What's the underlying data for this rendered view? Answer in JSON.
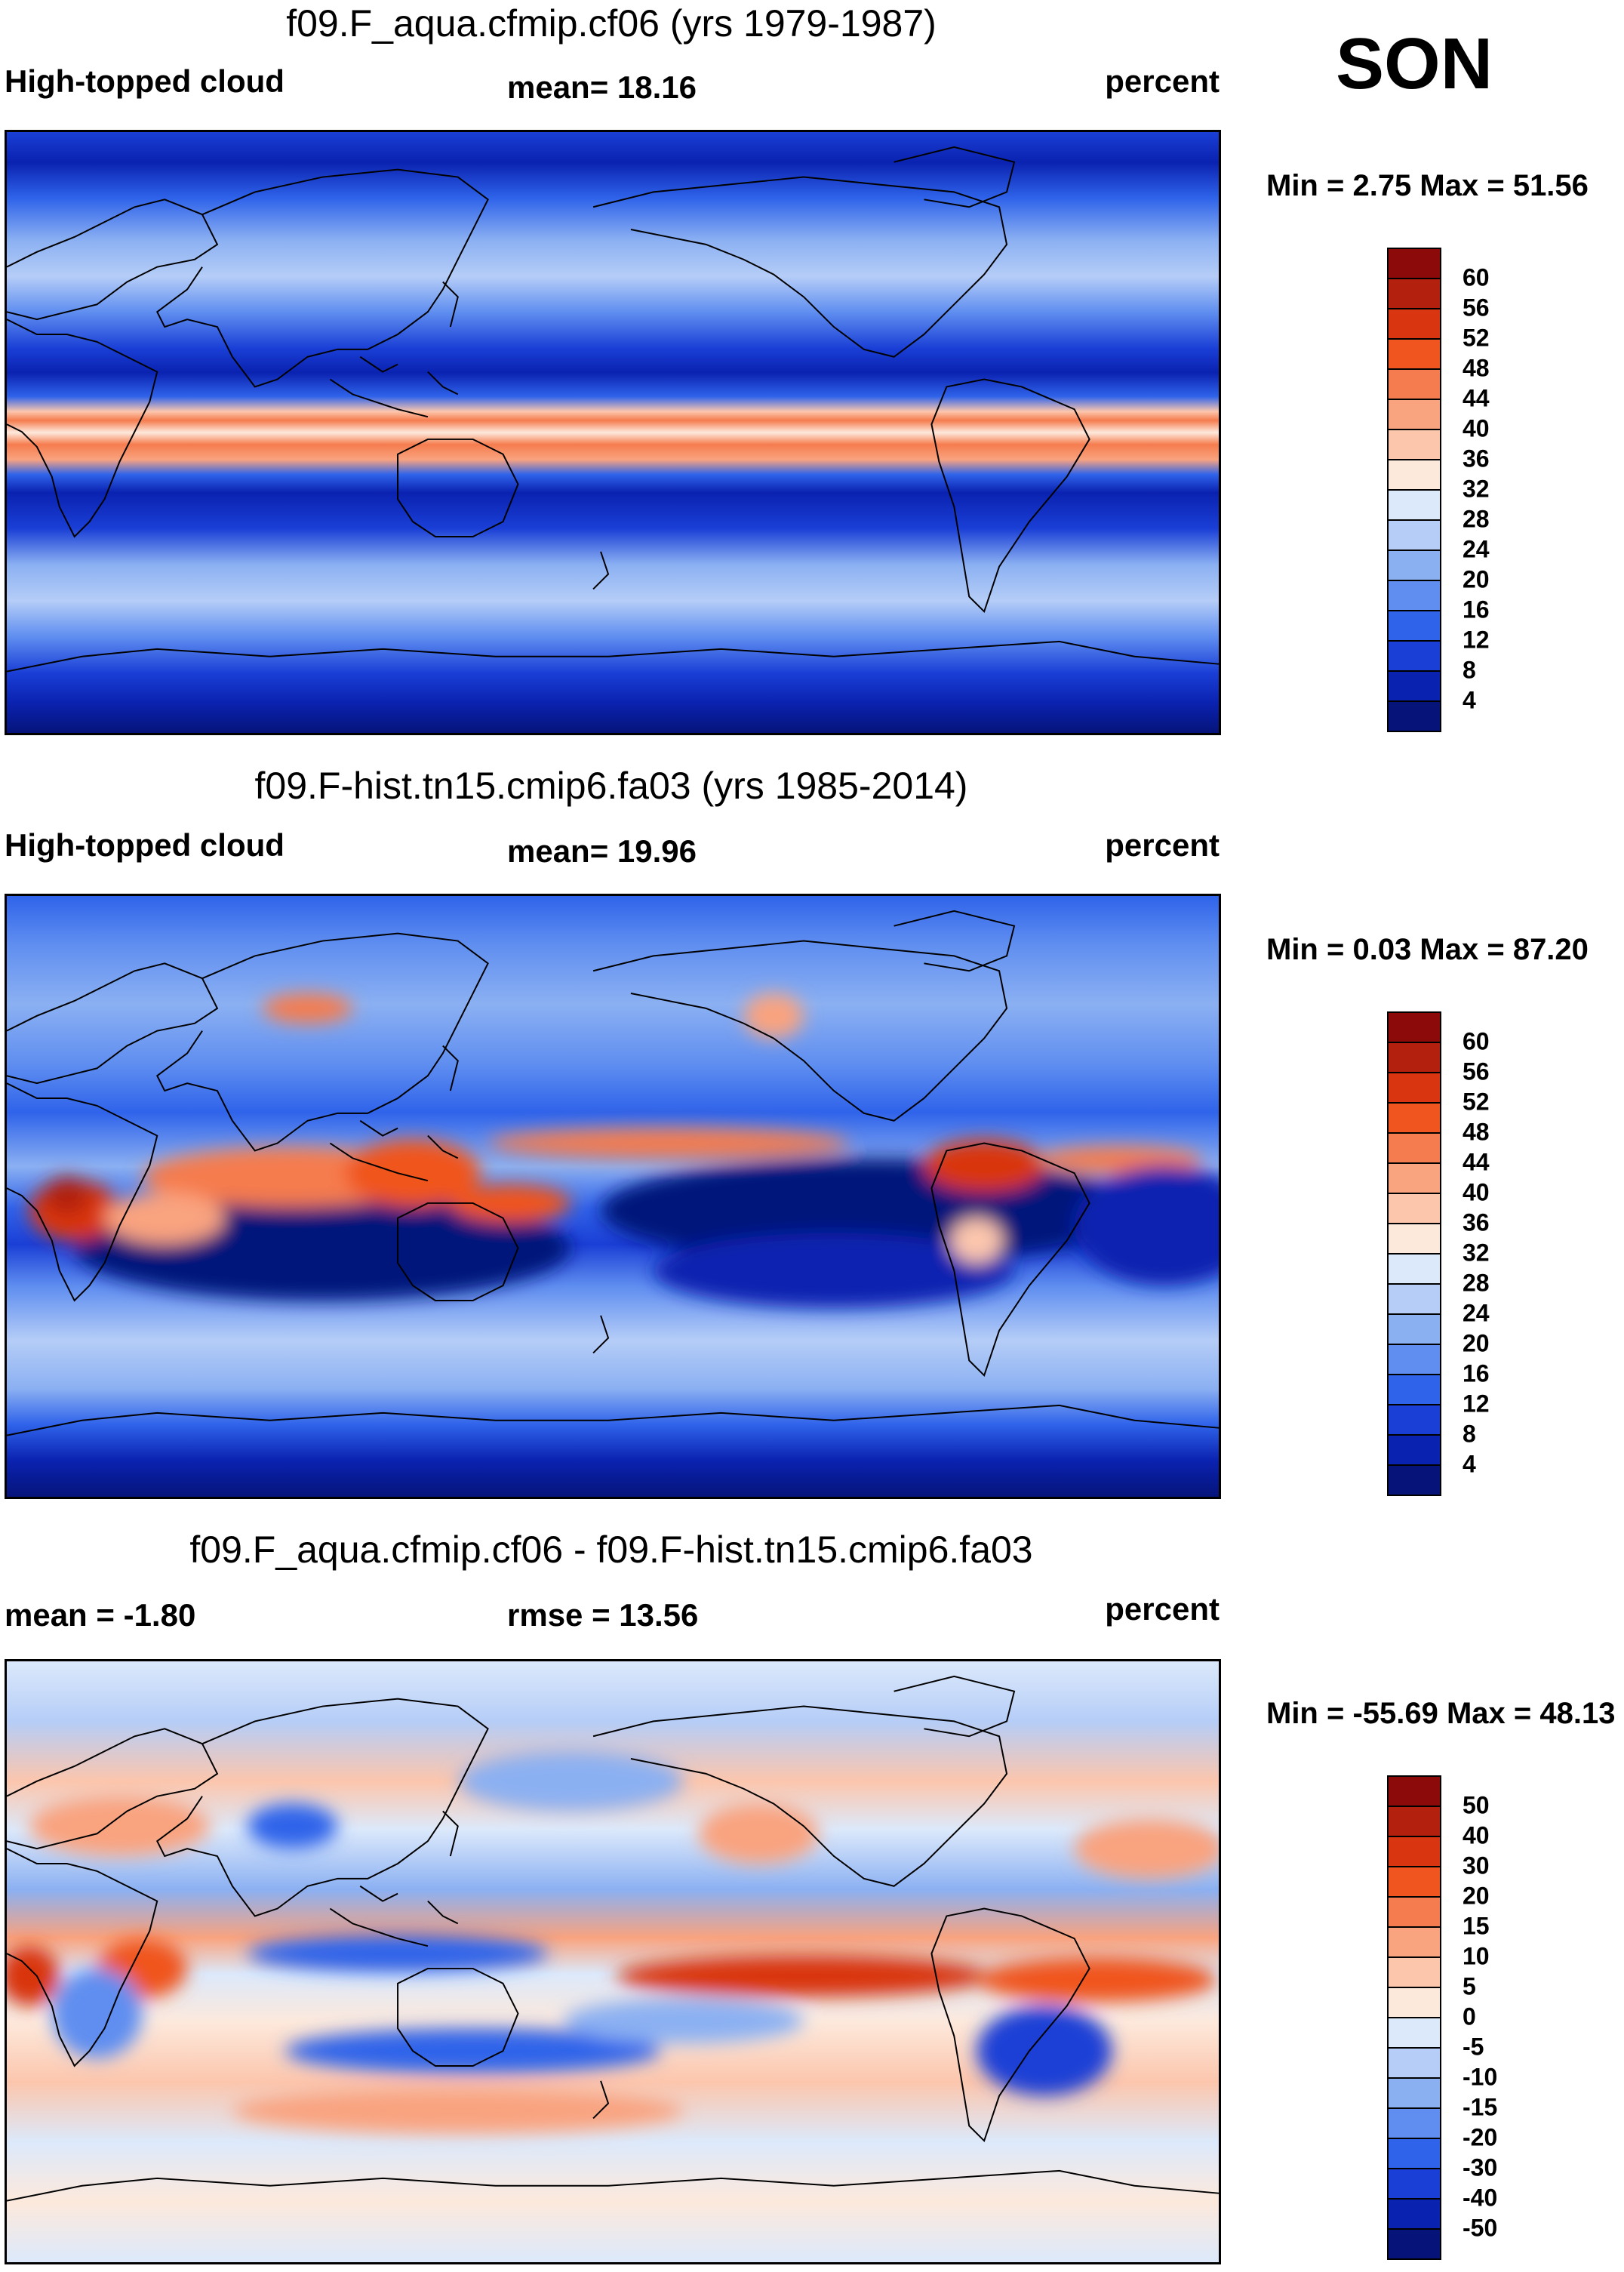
{
  "season": "SON",
  "panels": [
    {
      "title": "f09.F_aqua.cfmip.cf06 (yrs 1979-1987)",
      "left_label": "High-topped cloud",
      "center_label": "mean=  18.16",
      "right_label": "percent",
      "minmax": "Min =    2.75 Max =  51.56",
      "colorbar": {
        "labels": [
          "60",
          "56",
          "52",
          "48",
          "44",
          "40",
          "36",
          "32",
          "28",
          "24",
          "20",
          "16",
          "12",
          "8",
          "4"
        ],
        "colors": [
          "#8c0a0a",
          "#b3200e",
          "#d93511",
          "#f0541f",
          "#f57c4e",
          "#f9a37f",
          "#fcc6ad",
          "#fde9dc",
          "#dce9fb",
          "#b5cdf7",
          "#8bb0f2",
          "#5f8ef0",
          "#2f63ea",
          "#1a3fd6",
          "#0a22b0",
          "#06147a"
        ]
      },
      "field": "aqua"
    },
    {
      "title": "f09.F-hist.tn15.cmip6.fa03 (yrs 1985-2014)",
      "left_label": "High-topped cloud",
      "center_label": "mean=  19.96",
      "right_label": "percent",
      "minmax": "Min =    0.03 Max =  87.20",
      "colorbar": {
        "labels": [
          "60",
          "56",
          "52",
          "48",
          "44",
          "40",
          "36",
          "32",
          "28",
          "24",
          "20",
          "16",
          "12",
          "8",
          "4"
        ],
        "colors": [
          "#8c0a0a",
          "#b3200e",
          "#d93511",
          "#f0541f",
          "#f57c4e",
          "#f9a37f",
          "#fcc6ad",
          "#fde9dc",
          "#dce9fb",
          "#b5cdf7",
          "#8bb0f2",
          "#5f8ef0",
          "#2f63ea",
          "#1a3fd6",
          "#0a22b0",
          "#06147a"
        ]
      },
      "field": "hist"
    },
    {
      "title": "f09.F_aqua.cfmip.cf06 - f09.F-hist.tn15.cmip6.fa03",
      "left_label": "mean =  -1.80",
      "center_label": "rmse =  13.56",
      "right_label": "percent",
      "minmax": "Min = -55.69 Max =  48.13",
      "colorbar": {
        "labels": [
          "50",
          "40",
          "30",
          "20",
          "15",
          "10",
          "5",
          "0",
          "-5",
          "-10",
          "-15",
          "-20",
          "-30",
          "-40",
          "-50"
        ],
        "colors": [
          "#8c0a0a",
          "#b3200e",
          "#d93511",
          "#f0541f",
          "#f57c4e",
          "#f9a37f",
          "#fcc6ad",
          "#fde9dc",
          "#dce9fb",
          "#b5cdf7",
          "#8bb0f2",
          "#5f8ef0",
          "#2f63ea",
          "#1a3fd6",
          "#0a22b0",
          "#06147a"
        ]
      },
      "field": "diff"
    }
  ]
}
